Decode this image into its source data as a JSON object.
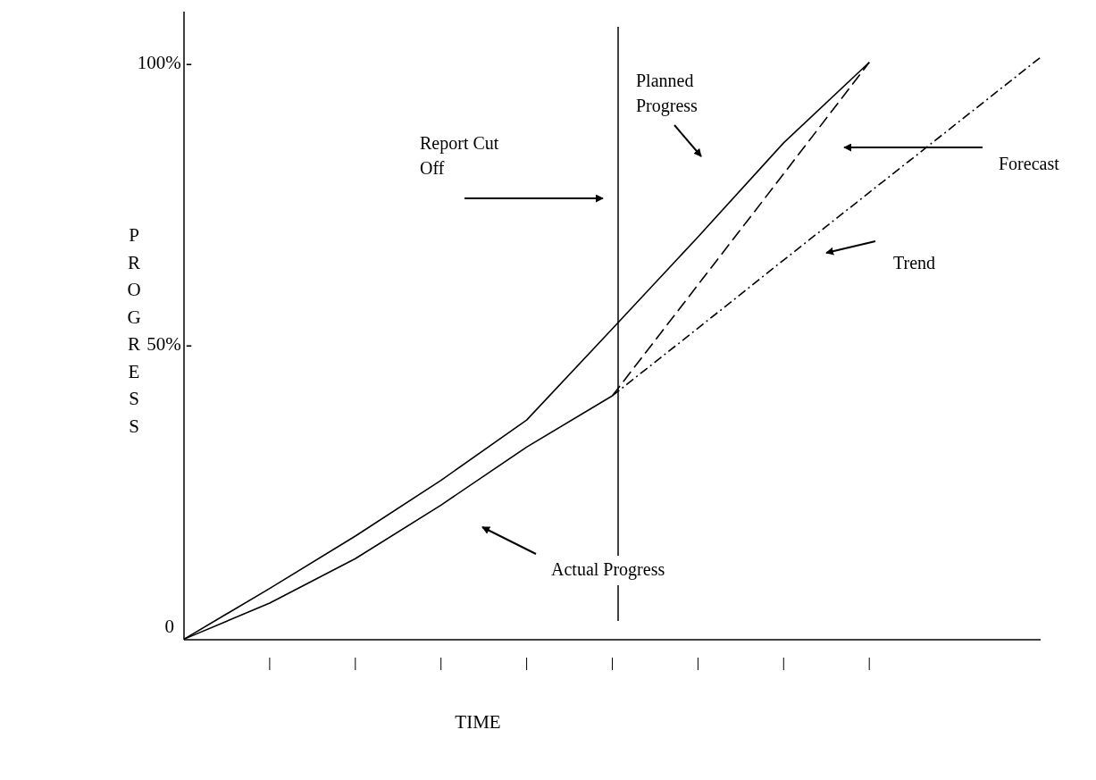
{
  "chart_data": {
    "type": "line",
    "xlabel": "TIME",
    "ylabel": "PROGRESS",
    "categories": [
      null,
      null,
      null,
      null,
      null,
      null,
      null,
      null,
      null,
      null,
      null
    ],
    "ylim": [
      -2.5,
      109
    ],
    "yticks": [
      {
        "value": 0,
        "label": "0"
      },
      {
        "value": 50,
        "label": "50% -"
      },
      {
        "value": 100,
        "label": "100% -"
      }
    ],
    "grid": false,
    "marker": "none",
    "series": [
      {
        "color": "#000000",
        "line_style": "solid",
        "values": [
          -2.4,
          6.6,
          15.9,
          25.8,
          36.5,
          52.7,
          69.0,
          85.7,
          100,
          null,
          null
        ]
      },
      {
        "color": "#000000",
        "line_style": "solid",
        "values": [
          -2.4,
          4.0,
          11.9,
          21.4,
          31.7,
          40.8,
          null,
          null,
          null,
          null,
          null
        ]
      },
      {
        "color": "#000000",
        "line_style": "dashed",
        "values": [
          null,
          null,
          null,
          null,
          null,
          40.8,
          60.5,
          80.2,
          100,
          null,
          null
        ]
      },
      {
        "color": "#000000",
        "line_style": "dashdot",
        "values": [
          null,
          null,
          null,
          null,
          null,
          40.8,
          52.8,
          64.9,
          76.9,
          88.9,
          100.9
        ]
      }
    ],
    "annotations": [
      "Report Cut Off",
      "Planned Progress",
      "Forecast",
      "Trend",
      "Actual Progress"
    ]
  }
}
